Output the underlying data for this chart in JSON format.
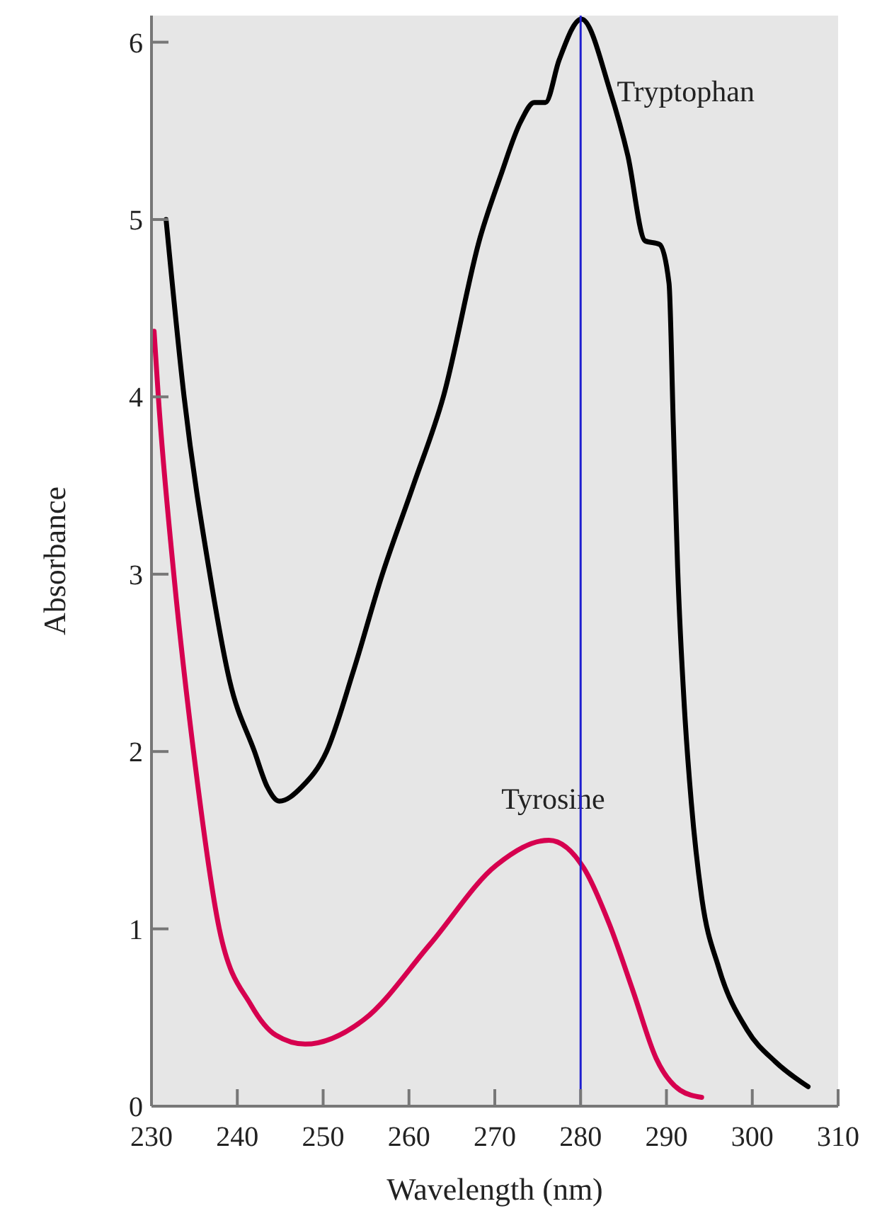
{
  "chart_data": {
    "type": "line",
    "xlabel": "Wavelength (nm)",
    "ylabel": "Absorbance",
    "xlim": [
      230,
      310
    ],
    "ylim": [
      0,
      6.15
    ],
    "xticks": [
      230,
      240,
      250,
      260,
      270,
      280,
      290,
      300,
      310
    ],
    "yticks": [
      0,
      1,
      2,
      3,
      4,
      5,
      6
    ],
    "grid": false,
    "marker": "none",
    "line_style": "solid",
    "series": [
      {
        "name": "Tryptophan",
        "color": "#000000",
        "x": [
          231.7,
          233.8,
          236.8,
          239.1,
          242,
          243.5,
          244.9,
          247.5,
          250.4,
          253.5,
          256.9,
          260.5,
          264,
          268.3,
          270.7,
          273,
          274.6,
          275.9,
          277.5,
          280.1,
          283.4,
          285.5,
          287.5,
          289.2,
          290.3,
          290.8,
          291.3,
          292.1,
          292.9,
          294.1,
          296.1,
          299.4,
          302.7,
          306.5
        ],
        "values": [
          5.0,
          4.0,
          3.0,
          2.4,
          2.0,
          1.8,
          1.72,
          1.8,
          2.0,
          2.45,
          3.0,
          3.5,
          4.0,
          4.9,
          5.25,
          5.55,
          5.66,
          5.66,
          5.9,
          6.13,
          5.73,
          5.36,
          4.88,
          4.86,
          4.64,
          3.84,
          3.04,
          2.24,
          1.71,
          1.18,
          0.78,
          0.43,
          0.25,
          0.11
        ]
      },
      {
        "name": "Tyrosine",
        "color": "#d6004f",
        "x": [
          230.3,
          230.8,
          232.6,
          234.9,
          237.9,
          241.6,
          244.5,
          247.9,
          254.8,
          262.4,
          270.2,
          276.3,
          280.4,
          283.4,
          286.1,
          288.8,
          291.6,
          294.1
        ],
        "values": [
          4.37,
          4.0,
          3.0,
          2.0,
          1.0,
          0.57,
          0.4,
          0.35,
          0.49,
          0.91,
          1.36,
          1.5,
          1.34,
          1.02,
          0.65,
          0.27,
          0.09,
          0.05
        ]
      }
    ],
    "ref_lines": [
      {
        "axis": "x",
        "value": 280,
        "color": "#2020d0",
        "line_style": "solid"
      }
    ]
  }
}
